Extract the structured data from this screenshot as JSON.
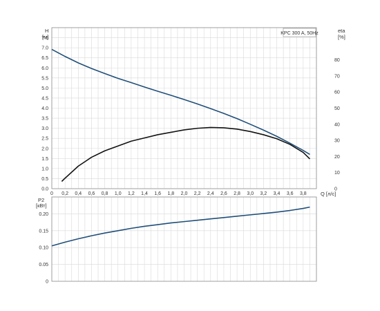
{
  "chart_data": [
    {
      "type": "line",
      "legend_label": "KPC 300 A, 50Hz",
      "grid": true,
      "y_label_line1": "H",
      "y_label_line2": "[м]",
      "y2_label_line1": "eta",
      "y2_label_line2": "[%]",
      "x_label": "Q [л/с]",
      "xlim": [
        0,
        4.0
      ],
      "ylim": [
        0,
        8.0
      ],
      "y2lim": [
        0,
        100
      ],
      "x_ticks": [
        "0",
        "0,2",
        "0,4",
        "0,6",
        "0,8",
        "1,0",
        "1,2",
        "1,4",
        "1,6",
        "1,8",
        "2,0",
        "2,2",
        "2,4",
        "2,6",
        "2,8",
        "3,0",
        "3,2",
        "3,4",
        "3,6",
        "3,8"
      ],
      "y_ticks": [
        "0.0",
        "0.5",
        "1.0",
        "1.5",
        "2.0",
        "2.5",
        "3.0",
        "3.5",
        "4.0",
        "4.5",
        "5.0",
        "5.5",
        "6.0",
        "6.5",
        "7.0",
        "7.5"
      ],
      "y2_ticks": [
        "0",
        "10",
        "20",
        "30",
        "40",
        "50",
        "60",
        "70",
        "80"
      ],
      "series": [
        {
          "axis": "left",
          "color": "#1f4e79",
          "x": [
            0,
            0.2,
            0.4,
            0.6,
            0.8,
            1.0,
            1.2,
            1.4,
            1.6,
            1.8,
            2.0,
            2.2,
            2.4,
            2.6,
            2.8,
            3.0,
            3.2,
            3.4,
            3.6,
            3.8,
            3.9
          ],
          "values": [
            6.92,
            6.57,
            6.25,
            5.97,
            5.72,
            5.48,
            5.27,
            5.05,
            4.84,
            4.64,
            4.43,
            4.21,
            3.98,
            3.74,
            3.48,
            3.2,
            2.91,
            2.6,
            2.26,
            1.9,
            1.7
          ]
        },
        {
          "axis": "right",
          "color": "#111111",
          "x": [
            0.15,
            0.2,
            0.4,
            0.6,
            0.8,
            1.0,
            1.2,
            1.4,
            1.6,
            1.8,
            2.0,
            2.2,
            2.4,
            2.6,
            2.8,
            3.0,
            3.2,
            3.4,
            3.6,
            3.8,
            3.9
          ],
          "values": [
            4.5,
            6.5,
            14,
            19.5,
            23.5,
            26.5,
            29.5,
            31.5,
            33.5,
            35,
            36.5,
            37.5,
            38,
            37.8,
            37,
            35.5,
            33.5,
            31,
            27.5,
            22.5,
            18.5
          ]
        }
      ]
    },
    {
      "type": "line",
      "grid": true,
      "y_label_line1": "P2",
      "y_label_line2": "[кВт]",
      "xlim": [
        0,
        4.0
      ],
      "ylim": [
        0,
        0.25
      ],
      "y_ticks": [
        "0",
        "0.05",
        "0.10",
        "0.15",
        "0.20"
      ],
      "series": [
        {
          "axis": "left",
          "color": "#1f4e79",
          "x": [
            0,
            0.2,
            0.4,
            0.6,
            0.8,
            1.0,
            1.2,
            1.4,
            1.6,
            1.8,
            2.0,
            2.2,
            2.4,
            2.6,
            2.8,
            3.0,
            3.2,
            3.4,
            3.6,
            3.8,
            3.9
          ],
          "values": [
            0.105,
            0.116,
            0.126,
            0.135,
            0.143,
            0.15,
            0.157,
            0.163,
            0.168,
            0.173,
            0.177,
            0.181,
            0.185,
            0.189,
            0.193,
            0.197,
            0.201,
            0.205,
            0.21,
            0.216,
            0.22
          ]
        }
      ]
    }
  ]
}
